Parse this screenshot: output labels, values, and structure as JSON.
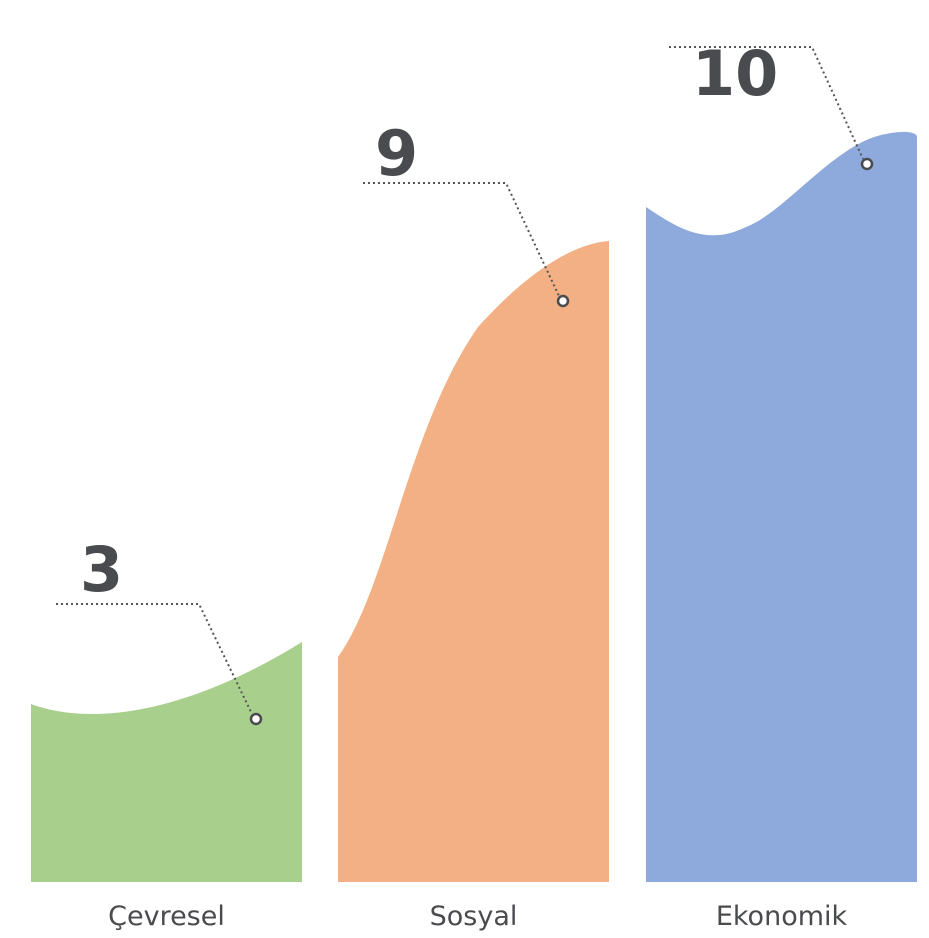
{
  "chart_data": {
    "type": "area",
    "categories": [
      "Çevresel",
      "Sosyal",
      "Ekonomik"
    ],
    "values": [
      3,
      9,
      10
    ],
    "value_labels": [
      "3",
      "9",
      "10"
    ],
    "colors": [
      "#a8cf8b",
      "#f2b084",
      "#8eaadc"
    ],
    "ylim": [
      0,
      10
    ],
    "grid": false,
    "legend": "none"
  }
}
